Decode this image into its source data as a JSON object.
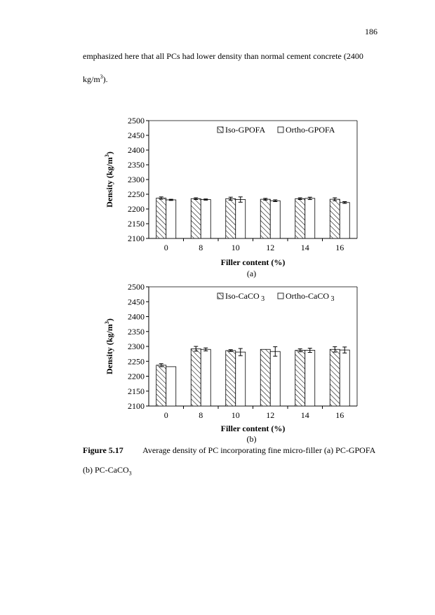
{
  "page": {
    "number": "186",
    "paragraph_line1": "emphasized here that all PCs had lower density than normal cement concrete (2400",
    "paragraph_line2_unit": "kg/m",
    "paragraph_line2_sup": "3",
    "paragraph_line2_end": ")."
  },
  "caption": {
    "label": "Figure 5.17",
    "text": "Average density of PC incorporating fine micro-filler (a) PC-GPOFA",
    "text2": "(b) PC-CaCO",
    "text2_sub": "3"
  },
  "colors": {
    "axis": "#000000",
    "bar_fill_hatched": "#ffffff",
    "hatch": "#000000",
    "bar_fill_plain": "#ffffff"
  },
  "chart_data": [
    {
      "type": "bar",
      "sub_label": "(a)",
      "xlabel": "Filler content (%)",
      "ylabel": "Density (kg/m",
      "ylabel_sup": "3",
      "ylabel_end": ")",
      "ylim": [
        2100,
        2500
      ],
      "yticks": [
        "2100",
        "2150",
        "2200",
        "2250",
        "2300",
        "2350",
        "2400",
        "2450",
        "2500"
      ],
      "categories": [
        "0",
        "8",
        "10",
        "12",
        "14",
        "16"
      ],
      "legend_position": "top",
      "series": [
        {
          "name": "Iso-GPOFA",
          "pattern": "hatched",
          "values": [
            2237,
            2235,
            2235,
            2233,
            2235,
            2233
          ],
          "errors": [
            4,
            3,
            5,
            3,
            3,
            5
          ]
        },
        {
          "name": "Ortho-GPOFA",
          "pattern": "plain",
          "values": [
            2231,
            2232,
            2232,
            2228,
            2236,
            2222
          ],
          "errors": [
            2,
            2,
            9,
            3,
            4,
            3
          ]
        }
      ]
    },
    {
      "type": "bar",
      "sub_label": "(b)",
      "xlabel": "Filler content (%)",
      "ylabel": "Density (kg/m",
      "ylabel_sup": "3",
      "ylabel_end": ")",
      "ylim": [
        2100,
        2500
      ],
      "yticks": [
        "2100",
        "2150",
        "2200",
        "2250",
        "2300",
        "2350",
        "2400",
        "2450",
        "2500"
      ],
      "categories": [
        "0",
        "8",
        "10",
        "12",
        "14",
        "16"
      ],
      "legend_position": "top",
      "series": [
        {
          "name": "Iso-CaCO",
          "name_sub": "3",
          "pattern": "hatched",
          "values": [
            2237,
            2292,
            2286,
            2290,
            2287,
            2290
          ],
          "errors": [
            5,
            8,
            3,
            0,
            5,
            9
          ]
        },
        {
          "name": "Ortho-CaCO",
          "name_sub": "3",
          "pattern": "plain",
          "values": [
            2232,
            2290,
            2281,
            2283,
            2287,
            2288
          ],
          "errors": [
            0,
            5,
            12,
            16,
            7,
            10
          ]
        }
      ]
    }
  ]
}
